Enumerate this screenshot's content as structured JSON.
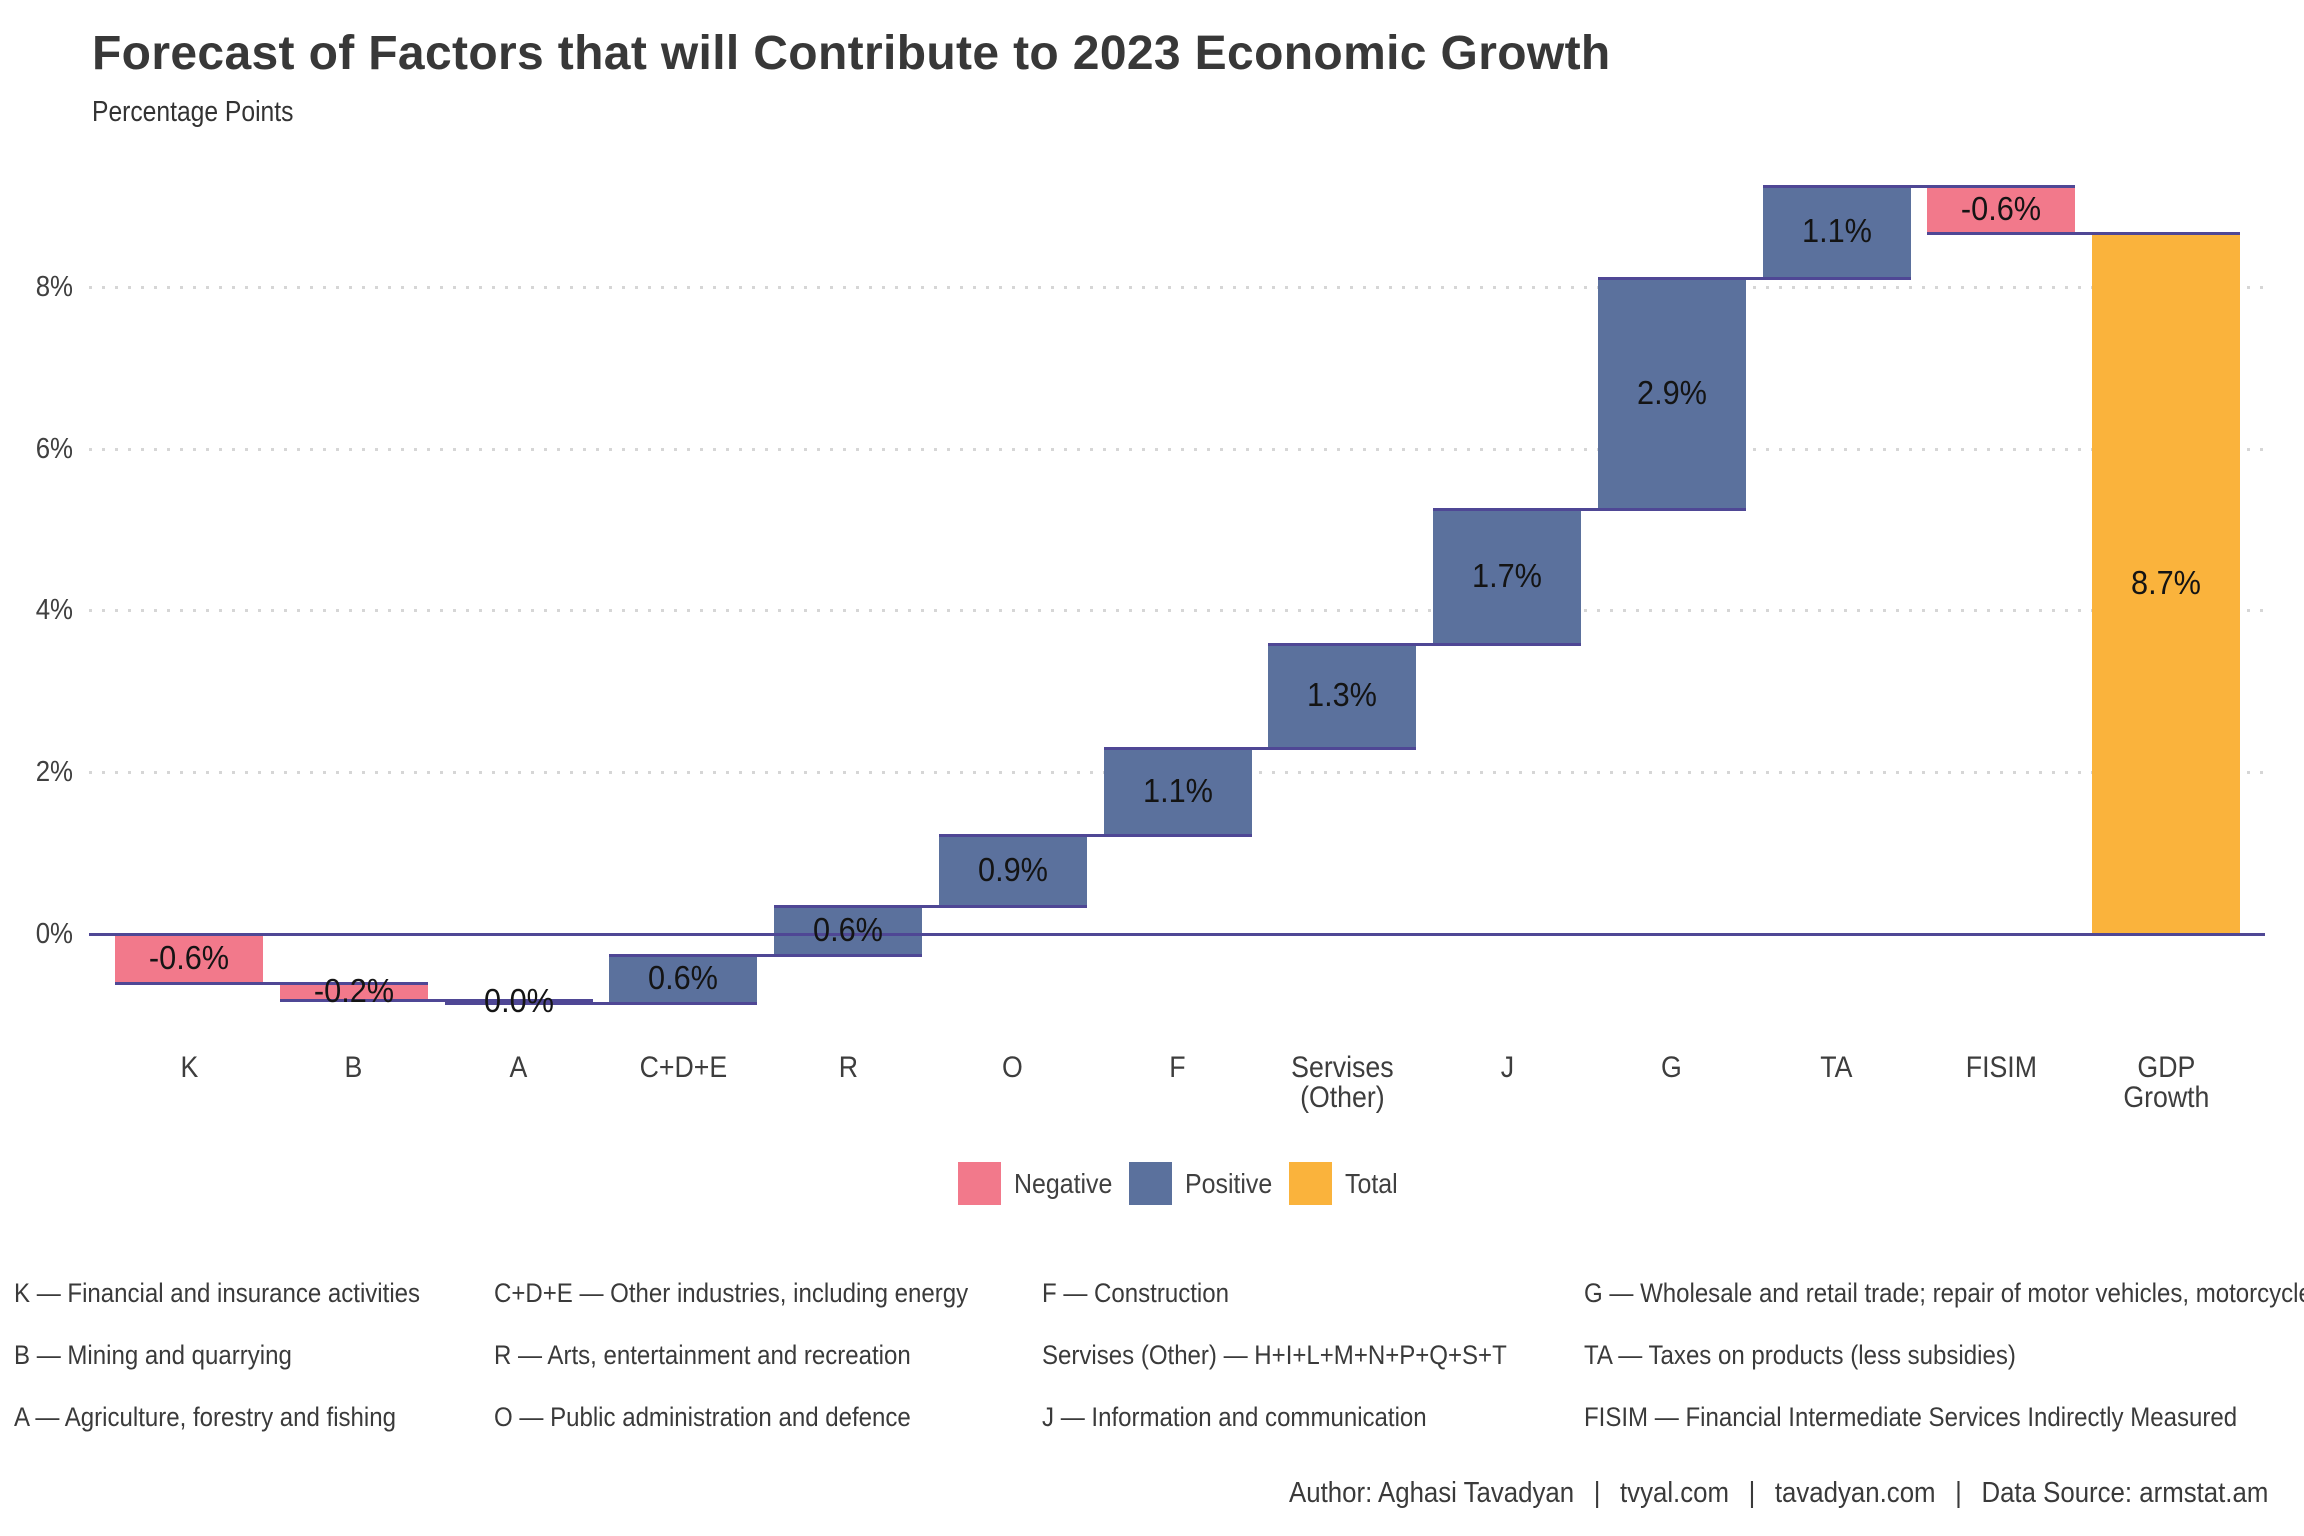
{
  "title": "Forecast of Factors that will Contribute to 2023 Economic Growth",
  "subtitle": "Percentage Points",
  "chart_data": {
    "type": "bar",
    "subtype": "waterfall",
    "categories": [
      "K",
      "B",
      "A",
      "C+D+E",
      "R",
      "O",
      "F",
      "Servises (Other)",
      "J",
      "G",
      "TA",
      "FISIM",
      "GDP Growth"
    ],
    "values": [
      -0.6,
      -0.2,
      0.0,
      0.6,
      0.6,
      0.9,
      1.1,
      1.3,
      1.7,
      2.9,
      1.1,
      -0.6,
      8.7
    ],
    "labels": [
      "-0.6%",
      "-0.2%",
      "0.0%",
      "0.6%",
      "0.6%",
      "0.9%",
      "1.1%",
      "1.3%",
      "1.7%",
      "2.9%",
      "1.1%",
      "-0.6%",
      "8.7%"
    ],
    "kinds": [
      "negative",
      "negative",
      "negative",
      "positive",
      "positive",
      "positive",
      "positive",
      "positive",
      "positive",
      "positive",
      "positive",
      "negative",
      "total"
    ],
    "xtick_lines": [
      [
        "K"
      ],
      [
        "B"
      ],
      [
        "A"
      ],
      [
        "C+D+E"
      ],
      [
        "R"
      ],
      [
        "O"
      ],
      [
        "F"
      ],
      [
        "Servises",
        "(Other)"
      ],
      [
        "J"
      ],
      [
        "G"
      ],
      [
        "TA"
      ],
      [
        "FISIM"
      ],
      [
        "GDP",
        "Growth"
      ]
    ],
    "title": "Forecast of Factors that will Contribute to 2023 Economic Growth",
    "ylabel": "Percentage Points",
    "yticks": [
      "0%",
      "2%",
      "4%",
      "6%",
      "8%"
    ],
    "ytick_values": [
      0,
      2,
      4,
      6,
      8
    ],
    "ylim": [
      -1.0,
      9.7
    ],
    "grid": "dotted-horizontal",
    "legend_position": "bottom",
    "colors": {
      "negative": "#F2798B",
      "positive": "#5B719D",
      "total": "#FAB33C",
      "line": "#4F4795",
      "gridline": "#d6d6d6"
    }
  },
  "legend": {
    "items": [
      {
        "label": "Negative",
        "kind": "negative"
      },
      {
        "label": "Positive",
        "kind": "positive"
      },
      {
        "label": "Total",
        "kind": "total"
      }
    ]
  },
  "footnotes": {
    "columns": [
      [
        "K — Financial and insurance activities",
        "B — Mining and quarrying",
        "A — Agriculture, forestry and fishing"
      ],
      [
        "C+D+E — Other industries, including energy",
        "R — Arts, entertainment and recreation",
        "O — Public administration and defence"
      ],
      [
        "F — Construction",
        "Servises (Other) — H+I+L+M+N+P+Q+S+T",
        "J — Information and communication"
      ],
      [
        "G — Wholesale and retail trade; repair of motor vehicles, motorcycle",
        "TA — Taxes on products (less subsidies)",
        "FISIM — Financial Intermediate Services Indirectly Measured"
      ]
    ]
  },
  "footer": {
    "author": "Author: Aghasi Tavadyan",
    "site1": "tvyal.com",
    "site2": "tavadyan.com",
    "source": "Data Source: armstat.am",
    "separator": "|"
  }
}
